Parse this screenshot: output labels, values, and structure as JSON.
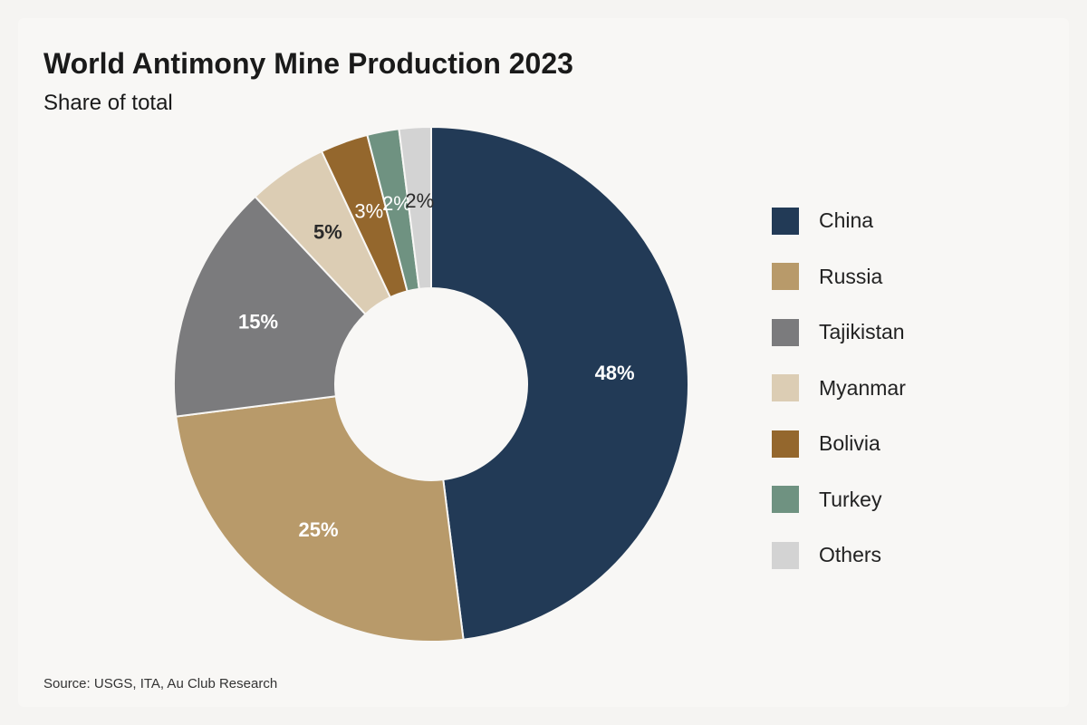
{
  "chart_data": {
    "type": "pie",
    "title": "World Antimony Mine Production 2023",
    "subtitle": "Share of total",
    "source": "Source: USGS, ITA, Au Club Research",
    "donut": true,
    "legend_position": "right",
    "unit": "%",
    "slices": [
      {
        "name": "China",
        "value": 48,
        "label": "48%",
        "color": "#223a56",
        "label_color": "#ffffff"
      },
      {
        "name": "Russia",
        "value": 25,
        "label": "25%",
        "color": "#b89a6a",
        "label_color": "#ffffff"
      },
      {
        "name": "Tajikistan",
        "value": 15,
        "label": "15%",
        "color": "#7b7b7d",
        "label_color": "#ffffff"
      },
      {
        "name": "Myanmar",
        "value": 5,
        "label": "5%",
        "color": "#dccdb4",
        "label_color": "#2a2a2a"
      },
      {
        "name": "Bolivia",
        "value": 3,
        "label": "3%",
        "color": "#94672d",
        "label_color": "#ffffff"
      },
      {
        "name": "Turkey",
        "value": 2,
        "label": "2%",
        "color": "#6f9281",
        "label_color": "#ffffff"
      },
      {
        "name": "Others",
        "value": 2,
        "label": "2%",
        "color": "#d3d3d3",
        "label_color": "#2a2a2a"
      }
    ]
  }
}
